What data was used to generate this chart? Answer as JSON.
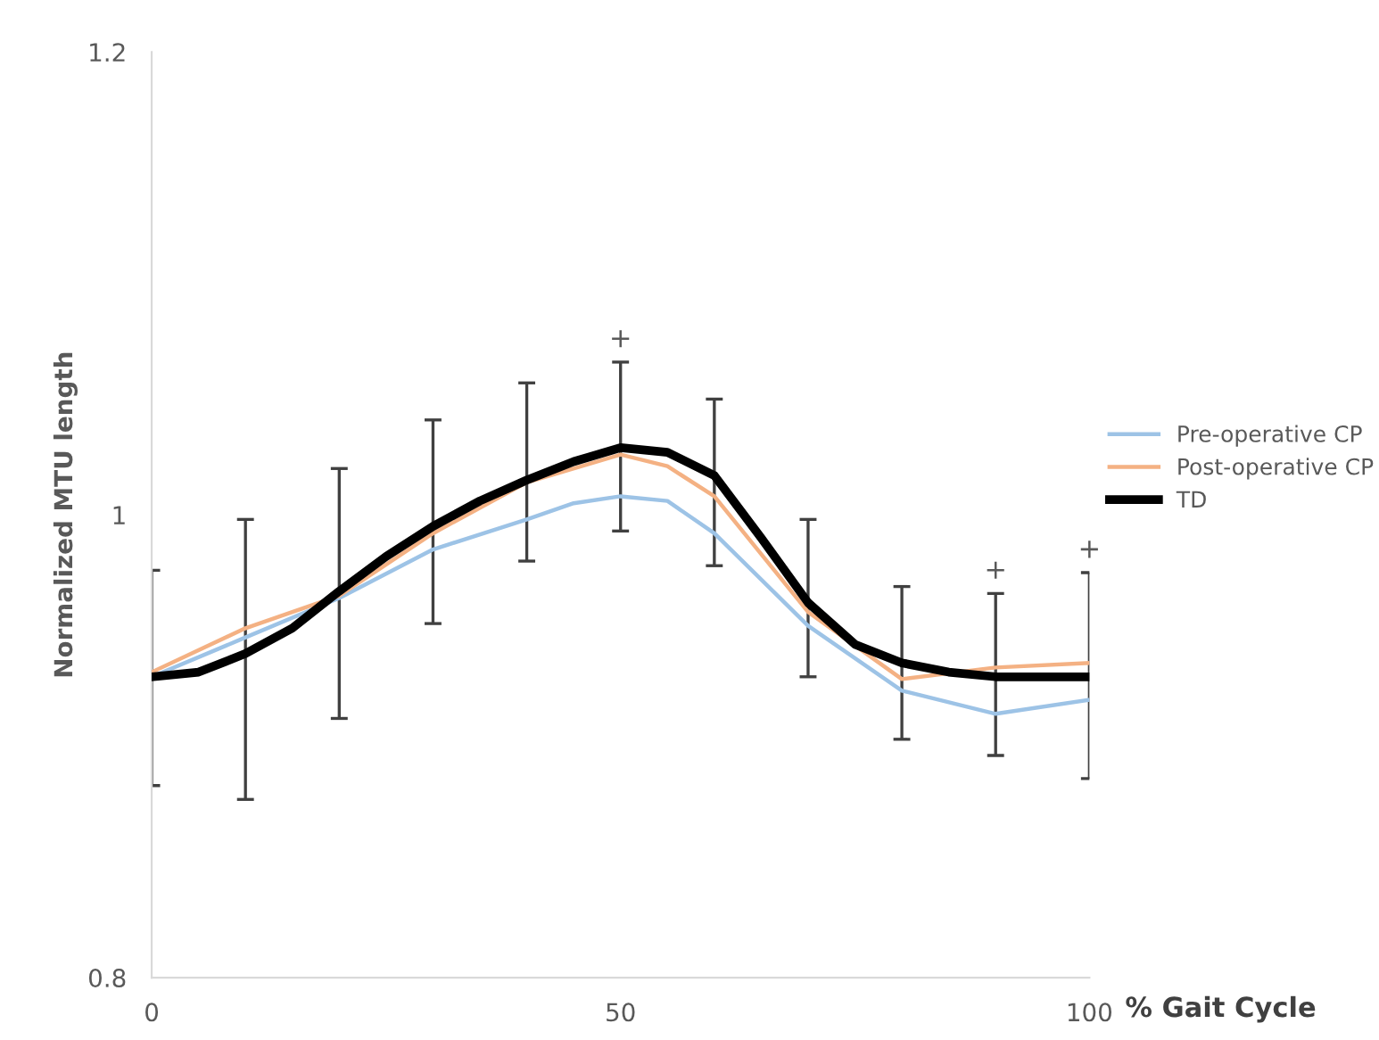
{
  "chart_data": {
    "type": "line",
    "xlabel": "% Gait Cycle",
    "ylabel": "Normalized MTU length",
    "xlim": [
      0,
      100
    ],
    "xticks": [
      0,
      50,
      100
    ],
    "ylim": [
      0.8,
      1.2
    ],
    "yticks": [
      0.8,
      1,
      1.2
    ],
    "grid": false,
    "legend": "right",
    "marker": "none",
    "line_style": "solid",
    "series": [
      {
        "name": "Pre-operative CP",
        "color": "#9dc3e6",
        "x": [
          0,
          10,
          20,
          30,
          40,
          45,
          50,
          55,
          60,
          70,
          80,
          90,
          100
        ],
        "values": [
          0.93,
          0.947,
          0.964,
          0.985,
          0.998,
          1.005,
          1.008,
          1.006,
          0.992,
          0.952,
          0.924,
          0.914,
          0.92
        ]
      },
      {
        "name": "Post-operative CP",
        "color": "#f4b183",
        "x": [
          0,
          10,
          20,
          30,
          40,
          50,
          55,
          60,
          70,
          80,
          90,
          100
        ],
        "values": [
          0.932,
          0.951,
          0.965,
          0.992,
          1.014,
          1.026,
          1.021,
          1.008,
          0.958,
          0.929,
          0.934,
          0.936
        ]
      },
      {
        "name": "TD",
        "color": "#000000",
        "x": [
          0,
          5,
          10,
          15,
          20,
          25,
          30,
          35,
          40,
          45,
          50,
          55,
          60,
          65,
          70,
          75,
          80,
          85,
          90,
          95,
          100
        ],
        "values": [
          0.93,
          0.932,
          0.94,
          0.951,
          0.967,
          0.982,
          0.995,
          1.006,
          1.015,
          1.023,
          1.029,
          1.027,
          1.017,
          0.99,
          0.962,
          0.944,
          0.936,
          0.932,
          0.93,
          0.93,
          0.93
        ],
        "errors": [
          [
            0.883,
            0.976
          ],
          null,
          [
            0.877,
            0.998
          ],
          null,
          [
            0.912,
            1.02
          ],
          null,
          [
            0.953,
            1.041
          ],
          null,
          [
            0.98,
            1.057
          ],
          null,
          [
            0.993,
            1.066
          ],
          null,
          [
            0.978,
            1.05
          ],
          null,
          [
            0.93,
            0.998
          ],
          null,
          [
            0.903,
            0.969
          ],
          null,
          [
            0.896,
            0.966
          ],
          null,
          [
            0.886,
            0.975
          ]
        ]
      }
    ],
    "annotations": [
      {
        "text": "+",
        "x": 50,
        "y": 1.066
      },
      {
        "text": "+",
        "x": 90,
        "y": 0.966
      },
      {
        "text": "+",
        "x": 100,
        "y": 0.975
      }
    ]
  }
}
